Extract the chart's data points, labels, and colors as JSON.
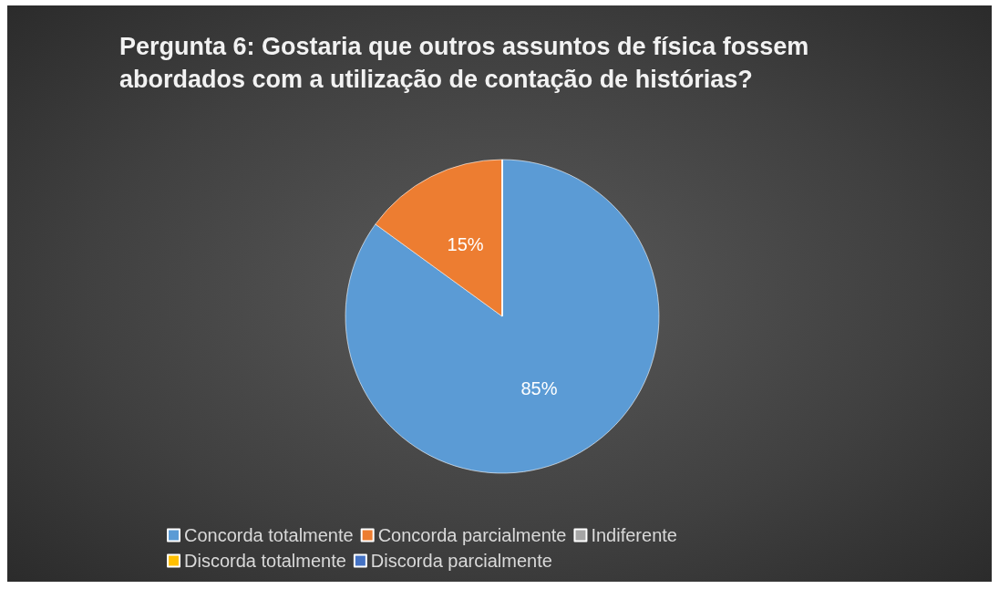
{
  "chart_data": {
    "type": "pie",
    "title": "Pergunta 6: Gostaria que outros assuntos de física fossem abordados com a utilização de contação de histórias?",
    "categories": [
      "Concorda totalmente",
      "Concorda parcialmente",
      "Indiferente",
      "Discorda totalmente",
      "Discorda parcialmente"
    ],
    "values": [
      85,
      15,
      0,
      0,
      0
    ],
    "colors": [
      "#5b9bd5",
      "#ed7d31",
      "#a5a5a5",
      "#ffc000",
      "#4472c4"
    ],
    "value_labels": [
      "85%",
      "15%",
      null,
      null,
      null
    ],
    "legend": "bottom"
  }
}
